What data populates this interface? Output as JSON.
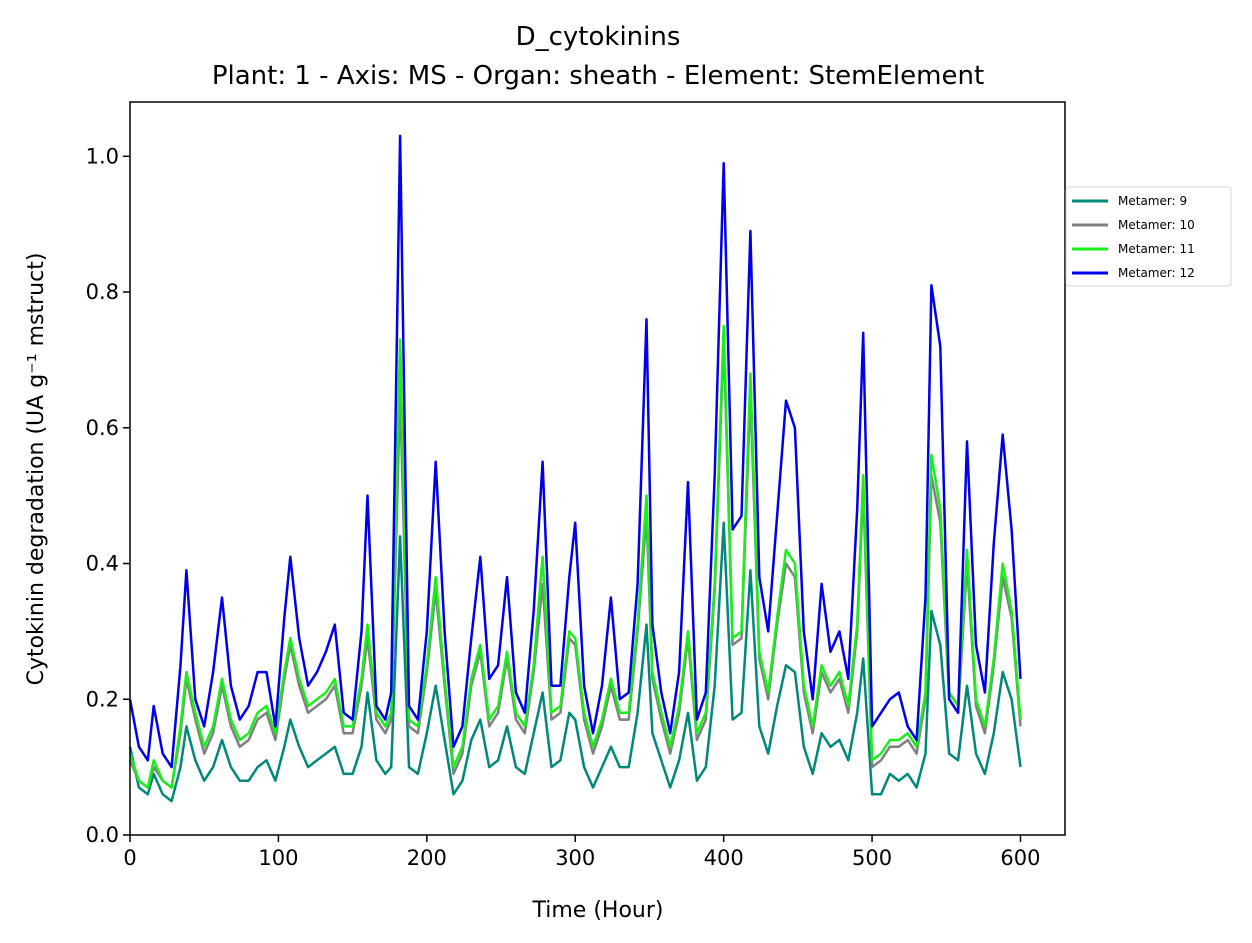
{
  "chart_data": {
    "type": "line",
    "title": "D_cytokinins",
    "subtitle": "Plant: 1 - Axis: MS - Organ: sheath - Element: StemElement",
    "xlabel": "Time (Hour)",
    "ylabel": "Cytokinin degradation (UA g⁻¹ mstruct)",
    "xlim": [
      0,
      630
    ],
    "ylim": [
      0,
      1.08
    ],
    "xticks": [
      "0",
      "100",
      "200",
      "300",
      "400",
      "500",
      "600"
    ],
    "yticks": [
      "0.0",
      "0.2",
      "0.4",
      "0.6",
      "0.8",
      "1.0"
    ],
    "legend_position": "outside-right",
    "grid": false,
    "x": [
      0,
      6,
      12,
      16,
      22,
      28,
      34,
      38,
      44,
      50,
      56,
      62,
      68,
      74,
      80,
      86,
      92,
      98,
      104,
      108,
      114,
      120,
      126,
      132,
      138,
      144,
      150,
      156,
      160,
      166,
      172,
      176,
      182,
      188,
      194,
      200,
      206,
      212,
      218,
      224,
      230,
      236,
      242,
      248,
      254,
      260,
      266,
      272,
      278,
      284,
      290,
      296,
      300,
      306,
      312,
      318,
      324,
      330,
      336,
      342,
      348,
      352,
      358,
      364,
      370,
      376,
      382,
      388,
      394,
      400,
      406,
      412,
      418,
      424,
      430,
      436,
      442,
      448,
      454,
      460,
      466,
      472,
      478,
      484,
      490,
      494,
      500,
      506,
      512,
      518,
      524,
      530,
      536,
      540,
      546,
      552,
      558,
      564,
      570,
      576,
      582,
      588,
      594,
      600
    ],
    "series": [
      {
        "name": "Metamer: 9",
        "color": "#00897b",
        "values": [
          0.13,
          0.07,
          0.06,
          0.09,
          0.06,
          0.05,
          0.1,
          0.16,
          0.11,
          0.08,
          0.1,
          0.14,
          0.1,
          0.08,
          0.08,
          0.1,
          0.11,
          0.08,
          0.13,
          0.17,
          0.13,
          0.1,
          0.11,
          0.12,
          0.13,
          0.09,
          0.09,
          0.13,
          0.21,
          0.11,
          0.09,
          0.1,
          0.44,
          0.1,
          0.09,
          0.15,
          0.22,
          0.14,
          0.06,
          0.08,
          0.14,
          0.17,
          0.1,
          0.11,
          0.16,
          0.1,
          0.09,
          0.15,
          0.21,
          0.1,
          0.11,
          0.18,
          0.17,
          0.1,
          0.07,
          0.1,
          0.13,
          0.1,
          0.1,
          0.18,
          0.31,
          0.15,
          0.11,
          0.07,
          0.11,
          0.18,
          0.08,
          0.1,
          0.22,
          0.46,
          0.17,
          0.18,
          0.39,
          0.16,
          0.12,
          0.19,
          0.25,
          0.24,
          0.13,
          0.09,
          0.15,
          0.13,
          0.14,
          0.11,
          0.18,
          0.26,
          0.06,
          0.06,
          0.09,
          0.08,
          0.09,
          0.07,
          0.12,
          0.33,
          0.28,
          0.12,
          0.11,
          0.22,
          0.12,
          0.09,
          0.15,
          0.24,
          0.2,
          0.1
        ]
      },
      {
        "name": "Metamer: 10",
        "color": "#808080",
        "values": [
          0.11,
          0.08,
          0.07,
          0.1,
          0.08,
          0.07,
          0.15,
          0.23,
          0.17,
          0.12,
          0.15,
          0.22,
          0.16,
          0.13,
          0.14,
          0.17,
          0.18,
          0.14,
          0.23,
          0.28,
          0.22,
          0.18,
          0.19,
          0.2,
          0.22,
          0.15,
          0.15,
          0.22,
          0.29,
          0.17,
          0.15,
          0.17,
          0.65,
          0.16,
          0.15,
          0.24,
          0.36,
          0.22,
          0.09,
          0.12,
          0.22,
          0.27,
          0.16,
          0.18,
          0.26,
          0.17,
          0.15,
          0.24,
          0.37,
          0.17,
          0.18,
          0.29,
          0.28,
          0.17,
          0.12,
          0.16,
          0.22,
          0.17,
          0.17,
          0.3,
          0.47,
          0.23,
          0.17,
          0.12,
          0.18,
          0.29,
          0.14,
          0.17,
          0.36,
          0.73,
          0.28,
          0.29,
          0.65,
          0.26,
          0.2,
          0.31,
          0.4,
          0.38,
          0.21,
          0.15,
          0.24,
          0.21,
          0.23,
          0.18,
          0.3,
          0.51,
          0.1,
          0.11,
          0.13,
          0.13,
          0.14,
          0.12,
          0.2,
          0.53,
          0.46,
          0.2,
          0.18,
          0.4,
          0.19,
          0.15,
          0.25,
          0.38,
          0.32,
          0.16
        ]
      },
      {
        "name": "Metamer: 11",
        "color": "#19ef19",
        "values": [
          0.12,
          0.08,
          0.07,
          0.11,
          0.08,
          0.07,
          0.16,
          0.24,
          0.18,
          0.13,
          0.16,
          0.23,
          0.17,
          0.14,
          0.15,
          0.18,
          0.19,
          0.15,
          0.24,
          0.29,
          0.23,
          0.19,
          0.2,
          0.21,
          0.23,
          0.16,
          0.16,
          0.23,
          0.31,
          0.18,
          0.16,
          0.18,
          0.73,
          0.17,
          0.16,
          0.25,
          0.38,
          0.23,
          0.1,
          0.13,
          0.23,
          0.28,
          0.17,
          0.19,
          0.27,
          0.18,
          0.16,
          0.25,
          0.41,
          0.18,
          0.19,
          0.3,
          0.29,
          0.18,
          0.13,
          0.17,
          0.23,
          0.18,
          0.18,
          0.31,
          0.5,
          0.24,
          0.18,
          0.13,
          0.19,
          0.3,
          0.15,
          0.18,
          0.37,
          0.75,
          0.29,
          0.3,
          0.68,
          0.27,
          0.21,
          0.32,
          0.42,
          0.4,
          0.22,
          0.16,
          0.25,
          0.22,
          0.24,
          0.19,
          0.31,
          0.53,
          0.11,
          0.12,
          0.14,
          0.14,
          0.15,
          0.13,
          0.21,
          0.56,
          0.48,
          0.21,
          0.19,
          0.42,
          0.2,
          0.16,
          0.26,
          0.4,
          0.33,
          0.17
        ]
      },
      {
        "name": "Metamer: 12",
        "color": "#0000ee",
        "values": [
          0.2,
          0.13,
          0.11,
          0.19,
          0.12,
          0.1,
          0.25,
          0.39,
          0.2,
          0.16,
          0.24,
          0.35,
          0.22,
          0.17,
          0.19,
          0.24,
          0.24,
          0.16,
          0.32,
          0.41,
          0.29,
          0.22,
          0.24,
          0.27,
          0.31,
          0.18,
          0.17,
          0.3,
          0.5,
          0.19,
          0.17,
          0.21,
          1.03,
          0.19,
          0.17,
          0.3,
          0.55,
          0.3,
          0.13,
          0.16,
          0.29,
          0.41,
          0.23,
          0.25,
          0.38,
          0.21,
          0.18,
          0.33,
          0.55,
          0.22,
          0.22,
          0.38,
          0.46,
          0.22,
          0.15,
          0.22,
          0.35,
          0.2,
          0.21,
          0.37,
          0.76,
          0.31,
          0.21,
          0.15,
          0.24,
          0.52,
          0.17,
          0.21,
          0.53,
          0.99,
          0.45,
          0.47,
          0.89,
          0.38,
          0.3,
          0.47,
          0.64,
          0.6,
          0.3,
          0.2,
          0.37,
          0.27,
          0.3,
          0.23,
          0.48,
          0.74,
          0.16,
          0.18,
          0.2,
          0.21,
          0.16,
          0.14,
          0.35,
          0.81,
          0.72,
          0.2,
          0.18,
          0.58,
          0.28,
          0.21,
          0.43,
          0.59,
          0.45,
          0.23
        ]
      }
    ]
  }
}
